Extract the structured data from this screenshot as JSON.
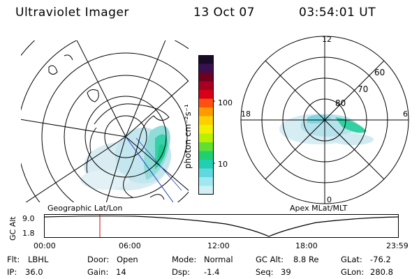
{
  "header": {
    "title": "Ultraviolet Imager",
    "date": "13 Oct 07",
    "time": "03:54:01 UT"
  },
  "geo_map": {
    "label": "Geographic Lat/Lon"
  },
  "polar_map": {
    "label": "Apex MLat/MLT",
    "mlt_labels": [
      "12",
      "18",
      "6",
      "0"
    ],
    "mlat_labels": [
      "60",
      "70",
      "80"
    ]
  },
  "colorbar": {
    "unit_label": "photon cm⁻²s⁻¹",
    "tick_labels": [
      "100",
      "10"
    ],
    "colors": [
      "#1a0a2a",
      "#3a1050",
      "#700020",
      "#a80020",
      "#d80018",
      "#ff5010",
      "#ff9a00",
      "#ffd000",
      "#f0f000",
      "#b8f000",
      "#60e030",
      "#20d070",
      "#20d0b0",
      "#60d8e0",
      "#a0e8f0",
      "#d0f0f8"
    ]
  },
  "altitude_plot": {
    "ylabel": "GC Alt",
    "y_ticks": [
      "9.0",
      "1.8"
    ],
    "x_ticks": [
      "00:00",
      "06:00",
      "12:00",
      "18:00",
      "23:59"
    ],
    "marker_color": "#cc0000"
  },
  "info": {
    "flt_label": "Flt:",
    "flt_value": "LBHL",
    "ip_label": "IP:",
    "ip_value": "36.0",
    "door_label": "Door:",
    "door_value": "Open",
    "gain_label": "Gain:",
    "gain_value": "14",
    "mode_label": "Mode:",
    "mode_value": "Normal",
    "dsp_label": "Dsp:",
    "dsp_value": "-1.4",
    "gcalt_label": "GC Alt:",
    "gcalt_value": "8.8 Re",
    "seq_label": "Seq:",
    "seq_value": "39",
    "glat_label": "GLat:",
    "glat_value": "-76.2",
    "glon_label": "GLon:",
    "glon_value": "280.8"
  }
}
